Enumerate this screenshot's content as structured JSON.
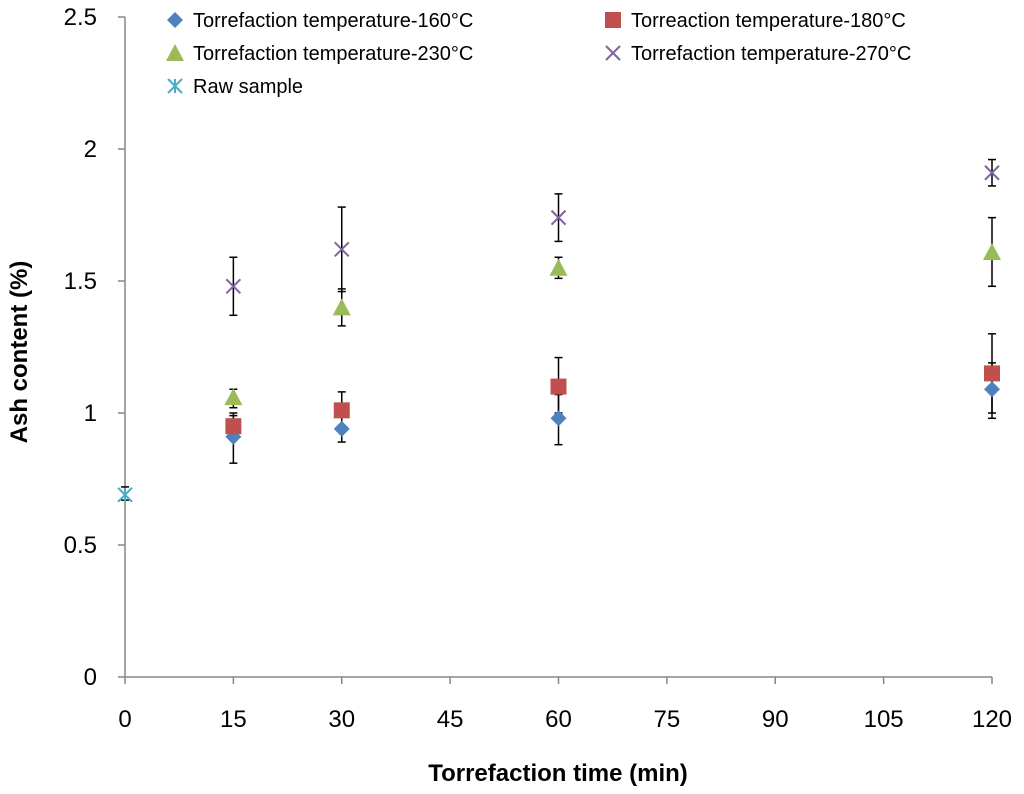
{
  "chart_data": {
    "type": "scatter",
    "title": "",
    "xlabel": "Torrefaction time (min)",
    "ylabel": "Ash content (%)",
    "xlim": [
      0,
      120
    ],
    "ylim": [
      0,
      2.5
    ],
    "x_ticks": [
      0,
      15,
      30,
      45,
      60,
      75,
      90,
      105,
      120
    ],
    "x_tick_labels": [
      "0",
      "15",
      "30",
      "45",
      "60",
      "75",
      "90",
      "105",
      "120"
    ],
    "y_ticks": [
      0,
      0.5,
      1,
      1.5,
      2,
      2.5
    ],
    "y_tick_labels": [
      "0",
      "0.5",
      "1",
      "1.5",
      "2",
      "2.5"
    ],
    "grid": false,
    "legend_position": "top",
    "series": [
      {
        "name": "Torrefaction temperature-160°C",
        "marker": "diamond",
        "color": "#4F81BD",
        "x": [
          15,
          30,
          60,
          120
        ],
        "y": [
          0.91,
          0.94,
          0.98,
          1.09
        ],
        "err_low": [
          0.81,
          0.89,
          0.88,
          0.98
        ],
        "err_high": [
          0.99,
          0.99,
          1.07,
          1.19
        ]
      },
      {
        "name": "Torreaction temperature-180°C",
        "marker": "square",
        "color": "#C0504D",
        "x": [
          15,
          30,
          60,
          120
        ],
        "y": [
          0.95,
          1.01,
          1.1,
          1.15
        ],
        "err_low": [
          0.9,
          0.95,
          1.0,
          1.0
        ],
        "err_high": [
          1.0,
          1.08,
          1.21,
          1.3
        ]
      },
      {
        "name": "Torrefaction temperature-230°C",
        "marker": "triangle",
        "color": "#9BBB59",
        "x": [
          15,
          30,
          60,
          120
        ],
        "y": [
          1.06,
          1.4,
          1.55,
          1.61
        ],
        "err_low": [
          1.02,
          1.33,
          1.51,
          1.48
        ],
        "err_high": [
          1.09,
          1.47,
          1.59,
          1.74
        ]
      },
      {
        "name": "Torrefaction temperature-270°C",
        "marker": "x",
        "color": "#8064A2",
        "x": [
          15,
          30,
          60,
          120
        ],
        "y": [
          1.48,
          1.62,
          1.74,
          1.91
        ],
        "err_low": [
          1.37,
          1.46,
          1.65,
          1.86
        ],
        "err_high": [
          1.59,
          1.78,
          1.83,
          1.96
        ]
      },
      {
        "name": "Raw sample",
        "marker": "asterisk",
        "color": "#4BACC6",
        "x": [
          0
        ],
        "y": [
          0.69
        ],
        "err_low": [
          0.67
        ],
        "err_high": [
          0.72
        ]
      }
    ]
  }
}
